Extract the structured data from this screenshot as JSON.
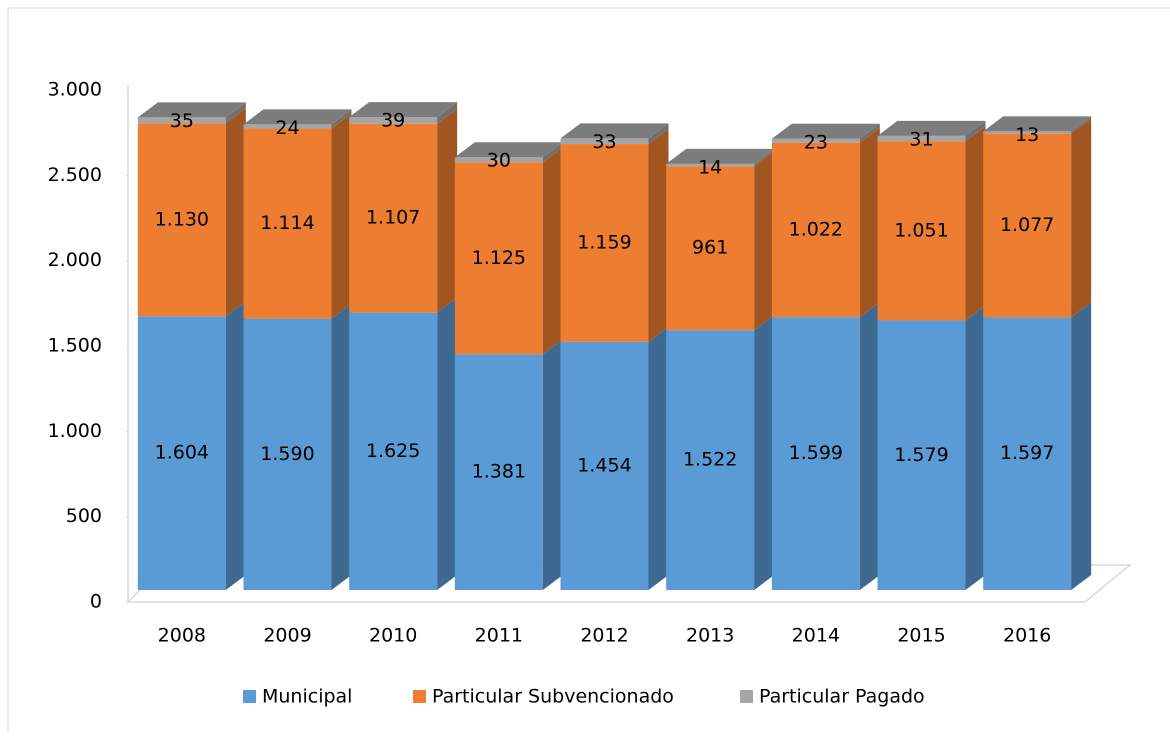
{
  "chart_data": {
    "type": "bar",
    "stacked": true,
    "three_d": true,
    "categories": [
      "2008",
      "2009",
      "2010",
      "2011",
      "2012",
      "2013",
      "2014",
      "2015",
      "2016"
    ],
    "series": [
      {
        "name": "Municipal",
        "color": "#5b9bd5",
        "values": [
          1604,
          1590,
          1625,
          1381,
          1454,
          1522,
          1599,
          1579,
          1597
        ],
        "value_labels": [
          "1.604",
          "1.590",
          "1.625",
          "1.381",
          "1.454",
          "1.522",
          "1.599",
          "1.579",
          "1.597"
        ]
      },
      {
        "name": "Particular Subvencionado",
        "color": "#ed7d31",
        "values": [
          1130,
          1114,
          1107,
          1125,
          1159,
          961,
          1022,
          1051,
          1077
        ],
        "value_labels": [
          "1.130",
          "1.114",
          "1.107",
          "1.125",
          "1.159",
          "961",
          "1.022",
          "1.051",
          "1.077"
        ]
      },
      {
        "name": "Particular Pagado",
        "color": "#a5a5a5",
        "values": [
          35,
          24,
          39,
          30,
          33,
          14,
          23,
          31,
          13
        ]
      }
    ],
    "ylim": [
      0,
      3000
    ],
    "yticks": [
      0,
      500,
      {
        "value": 1000,
        "label": "1.000"
      },
      {
        "value": 1500,
        "label": "1.500"
      },
      {
        "value": 2000,
        "label": "2.000"
      },
      {
        "value": 2500,
        "label": "2.500"
      },
      {
        "value": 3000,
        "label": "3.000"
      }
    ],
    "legend": "bottom"
  }
}
